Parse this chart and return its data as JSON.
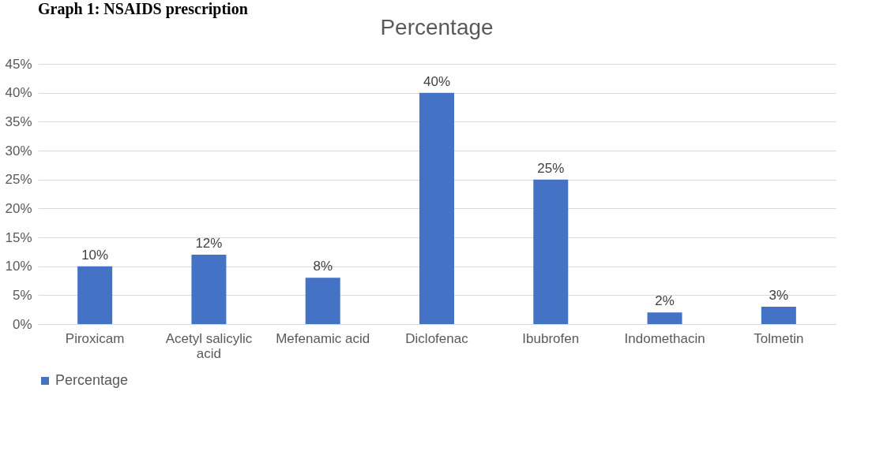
{
  "chart_data": {
    "type": "bar",
    "title": "Percentage",
    "annotations": [
      "Graph 1: NSAIDS prescription"
    ],
    "categories": [
      "Piroxicam",
      "Acetyl salicylic acid",
      "Mefenamic acid",
      "Diclofenac",
      "Ibubrofen",
      "Indomethacin",
      "Tolmetin"
    ],
    "series": [
      {
        "name": "Percentage",
        "color": "#4472c4",
        "values": [
          10,
          12,
          8,
          40,
          25,
          2,
          3
        ],
        "value_labels": [
          "10%",
          "12%",
          "8%",
          "40%",
          "25%",
          "2%",
          "3%"
        ]
      }
    ],
    "ylim": [
      0,
      45
    ],
    "yticks": [
      {
        "value": 0,
        "label": "0%"
      },
      {
        "value": 5,
        "label": "5%"
      },
      {
        "value": 10,
        "label": "10%"
      },
      {
        "value": 15,
        "label": "15%"
      },
      {
        "value": 20,
        "label": "20%"
      },
      {
        "value": 25,
        "label": "25%"
      },
      {
        "value": 30,
        "label": "30%"
      },
      {
        "value": 35,
        "label": "35%"
      },
      {
        "value": 40,
        "label": "40%"
      },
      {
        "value": 45,
        "label": "45%"
      }
    ],
    "grid": "y",
    "legend": "bottom"
  }
}
